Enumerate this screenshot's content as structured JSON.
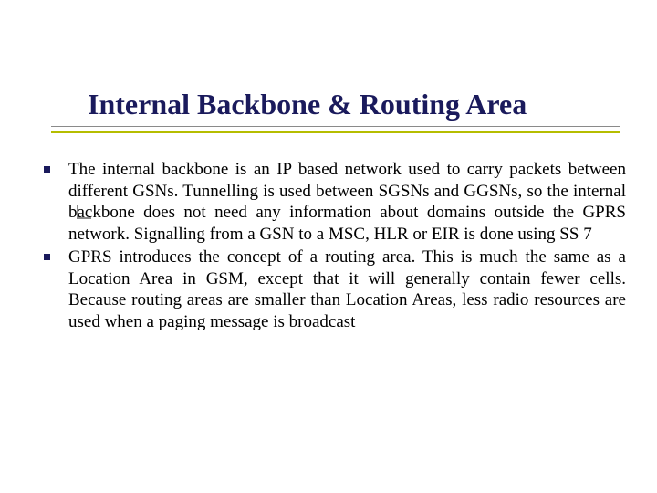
{
  "title": "Internal Backbone & Routing Area",
  "title_color": "#1a1a5c",
  "title_fontsize": 32,
  "underline_color_top": "#8a8a8a",
  "underline_color_bottom": "#b5bd00",
  "accent_box_color": "#8a8a8a",
  "bullet_color": "#1a1a5c",
  "body_fontsize": 19,
  "body_color": "#000000",
  "background_color": "#ffffff",
  "bullets": [
    {
      "text": "The internal backbone is an IP based network used to carry packets between different GSNs. Tunnelling is used between SGSNs and GGSNs, so the internal backbone does not need any information about domains outside the GPRS network. Signalling from a GSN to a MSC, HLR or EIR is done using SS 7"
    },
    {
      "text": "GPRS introduces the concept of a routing area. This is much the same as a Location Area in GSM, except that it will generally contain fewer cells. Because routing areas are smaller than Location Areas, less radio resources are used when a paging message is broadcast"
    }
  ]
}
